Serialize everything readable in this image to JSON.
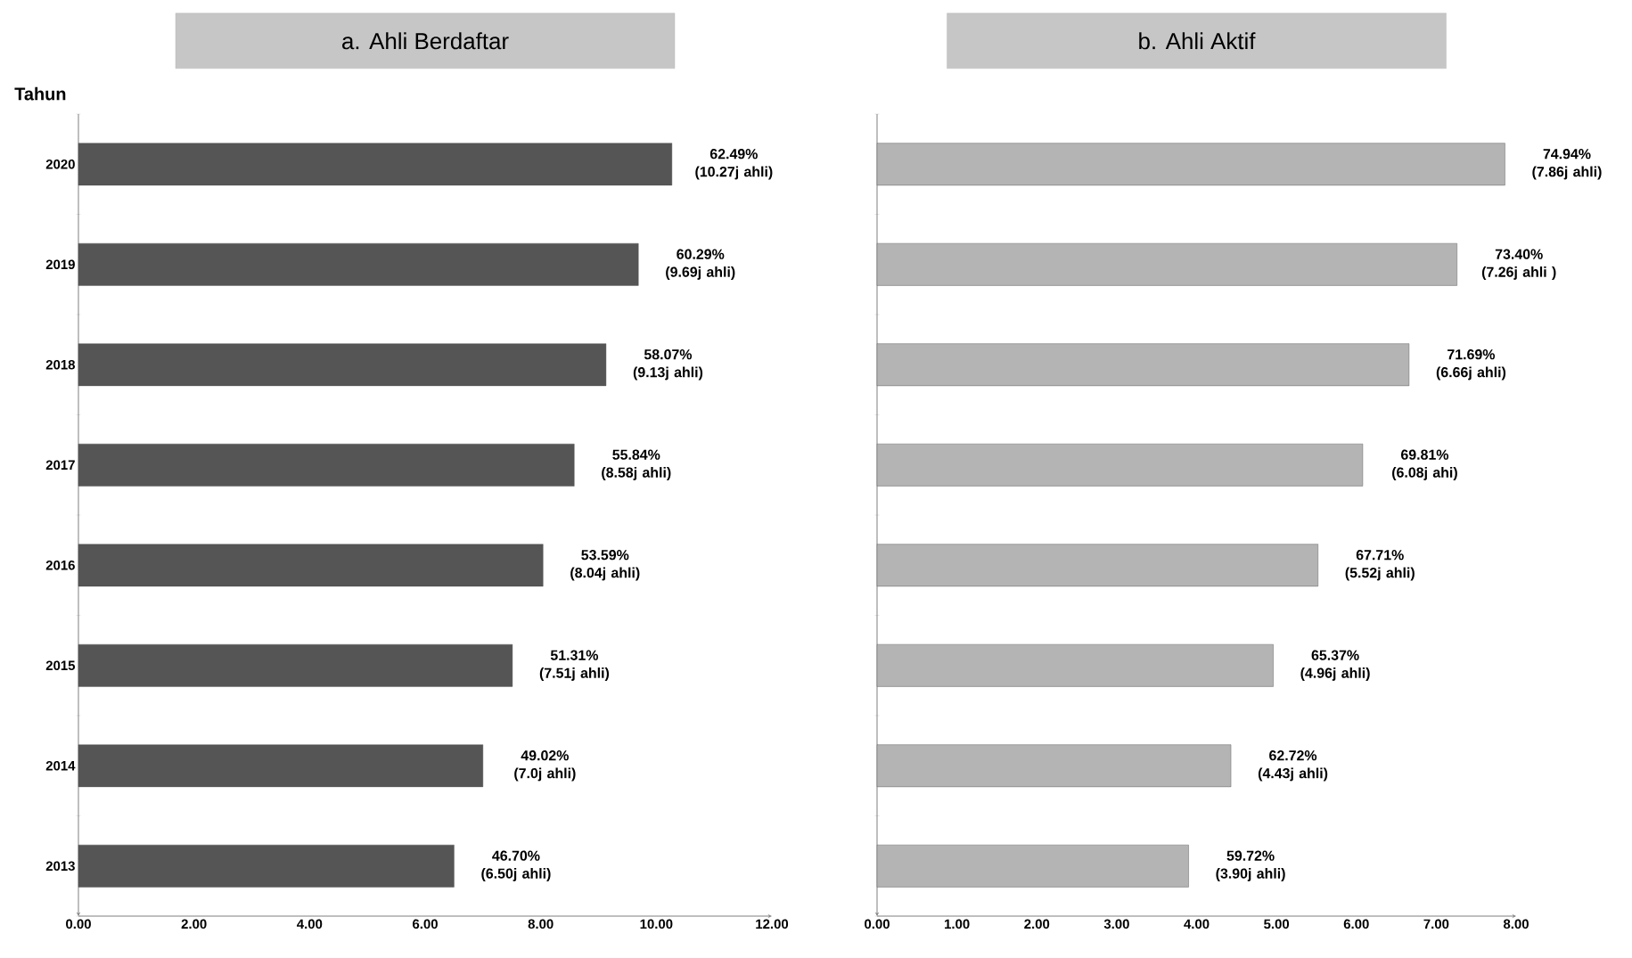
{
  "chart_data": [
    {
      "type": "bar",
      "orientation": "horizontal",
      "title": "a. Ahli Berdaftar",
      "ylabel": "Tahun",
      "categories": [
        "2020",
        "2019",
        "2018",
        "2017",
        "2016",
        "2015",
        "2014",
        "2013"
      ],
      "values": [
        10.27,
        9.69,
        9.13,
        8.58,
        8.04,
        7.51,
        7.0,
        6.5
      ],
      "color": "#555555",
      "value_labels": [
        "62.49% (10.27j ahli)",
        "60.29% (9.69j ahli)",
        "58.07% (9.13j ahli)",
        "55.84% (8.58j ahli)",
        "53.59% (8.04j ahli)",
        "51.31% (7.51j ahli)",
        "49.02% (7.0j ahli)",
        "46.70% (6.50j ahli)"
      ],
      "xlim": [
        0,
        12
      ],
      "xticks": [
        {
          "value": 0,
          "label": "0.00"
        },
        {
          "value": 2,
          "label": "2.00"
        },
        {
          "value": 4,
          "label": "4.00"
        },
        {
          "value": 6,
          "label": "6.00"
        },
        {
          "value": 8,
          "label": "8.00"
        },
        {
          "value": 10,
          "label": "10.00"
        },
        {
          "value": 12,
          "label": "12.00"
        }
      ]
    },
    {
      "type": "bar",
      "orientation": "horizontal",
      "title": "b. Ahli Aktif",
      "categories": [
        "2020",
        "2019",
        "2018",
        "2017",
        "2016",
        "2015",
        "2014",
        "2013"
      ],
      "values": [
        7.86,
        7.26,
        6.66,
        6.08,
        5.52,
        4.96,
        4.43,
        3.9
      ],
      "color": "#b4b4b4",
      "value_labels": [
        "74.94% (7.86j ahli)",
        "73.40% (7.26j ahli )",
        "71.69% (6.66j ahli)",
        "69.81% (6.08j ahi)",
        "67.71% (5.52j ahli)",
        "65.37% (4.96j ahli)",
        "62.72% (4.43j ahli)",
        "59.72% (3.90j ahli)"
      ],
      "tick_labels": "x",
      "xlim": [
        0,
        8
      ],
      "xticks": [
        {
          "value": 0,
          "label": "0.00"
        },
        {
          "value": 1,
          "label": "1.00"
        },
        {
          "value": 2,
          "label": "2.00"
        },
        {
          "value": 3,
          "label": "3.00"
        },
        {
          "value": 4,
          "label": "4.00"
        },
        {
          "value": 5,
          "label": "5.00"
        },
        {
          "value": 6,
          "label": "6.00"
        },
        {
          "value": 7,
          "label": "7.00"
        },
        {
          "value": 8,
          "label": "8.00"
        }
      ]
    }
  ]
}
